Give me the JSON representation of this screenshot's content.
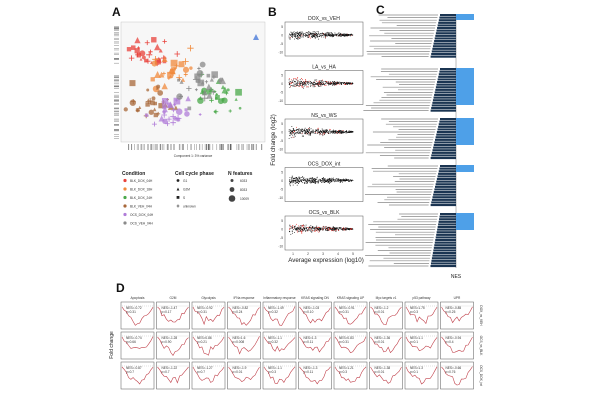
{
  "panels": {
    "a": "A",
    "b": "B",
    "c": "C",
    "d": "D"
  },
  "panel_a": {
    "xlabel": "Component 1: 3% variance",
    "legend": {
      "condition_title": "Condition",
      "conditions": [
        {
          "label": "BLK_DOX_04H",
          "color": "#e8423b"
        },
        {
          "label": "BLK_DOX_18H",
          "color": "#f08a3c"
        },
        {
          "label": "BLK_DOX_24H",
          "color": "#4aa84a"
        },
        {
          "label": "BLK_VEH_04H",
          "color": "#a8683a"
        },
        {
          "label": "OCS_DOX_04H",
          "color": "#b07cd8"
        },
        {
          "label": "OCS_VEH_04H",
          "color": "#8a8a8a"
        }
      ],
      "cellcycle_title": "Cell cycle phase",
      "phases": [
        "G1",
        "G2M",
        "S",
        "unknown"
      ],
      "nfeatures_title": "N features",
      "nfeatures": [
        "6033",
        "8033",
        "10009"
      ]
    }
  },
  "panel_b": {
    "ylabel": "Fold change (log2)",
    "xlabel": "Average expression (log10)",
    "plots": [
      {
        "title": "DOX_vs_VEH",
        "red_density": "low"
      },
      {
        "title": "LA_vs_HA",
        "red_density": "high"
      },
      {
        "title": "NS_vs_WS",
        "red_density": "low"
      },
      {
        "title": "OCS_DOX_int",
        "red_density": "none"
      },
      {
        "title": "OCS_vs_BLK",
        "red_density": "high"
      }
    ],
    "yticks": [
      "5",
      "0",
      "-5",
      "-10"
    ],
    "xticks": [
      "1",
      "2",
      "3",
      "4",
      "5"
    ],
    "colors": {
      "sig": "#e0201a",
      "nonsig": "#111111"
    }
  },
  "panel_c": {
    "xlabel": "NES",
    "colors": {
      "dark": "#1b3552",
      "light": "#4ea0e8"
    }
  },
  "panel_d": {
    "ylabel": "Fold change",
    "columns": [
      "Apoptosis",
      "G2M",
      "Glycolysis",
      "IFNa response",
      "Inflammatory response",
      "KRAS signaling DN",
      "KRAS signaling UP",
      "Myc targets v1",
      "p53 pathway",
      "UPR"
    ],
    "rows": [
      "DOX_vs_VEH",
      "OCS_vs_BLK",
      "OCS_DOX_int"
    ],
    "stats": [
      [
        "NES=-0.72\np=0.31",
        "NES=-1.47\np=0.17",
        "NES=-0.92\np=0.31",
        "NES=-0.82\np=0.24",
        "NES=-1.49\np=0.32",
        "NES=-1.03\np=0.10",
        "NES=-0.91\np=0.31",
        "NES=-1.2\np=0.01",
        "NES=1.75\np=0.3",
        "NES=-0.85\np=0.25"
      ],
      [
        "NES=-0.74\np=0.66",
        "NES=-1.28\np=0.90",
        "NES=0.86\np=0.21",
        "NES=1.6\np=0.008",
        "NES=-1.1\np=0.32",
        "NES=1.3\np=0.11",
        "NES=0.83\np=0.31",
        "NES=-1.36\np=0.01",
        "NES=1.1\np=0.1",
        "NES=-0.94\np=0.4"
      ],
      [
        "NES=-0.87\np=0.7",
        "NES=-1.22\np=0.7",
        "NES=-1.27\np=0.7",
        "NES=-1.9\np=0.01",
        "NES=-1.1\np=0.3",
        "NES=-1.3\np=0.11",
        "NES=1.21\np=0.3",
        "NES=-1.38\np=0.01",
        "NES=1.3\np=0.1",
        "NES=-0.66\np=0.76"
      ]
    ],
    "row_tag": [
      "DOX_vs_VEH",
      "OCS_vs_BLK",
      "OCS_DOX_int"
    ],
    "yticks_right": [
      "-1.0",
      "-1.2",
      "-1.4",
      "-1.6"
    ],
    "colors": {
      "curve": "#c0404a",
      "ref": "#999999"
    }
  }
}
